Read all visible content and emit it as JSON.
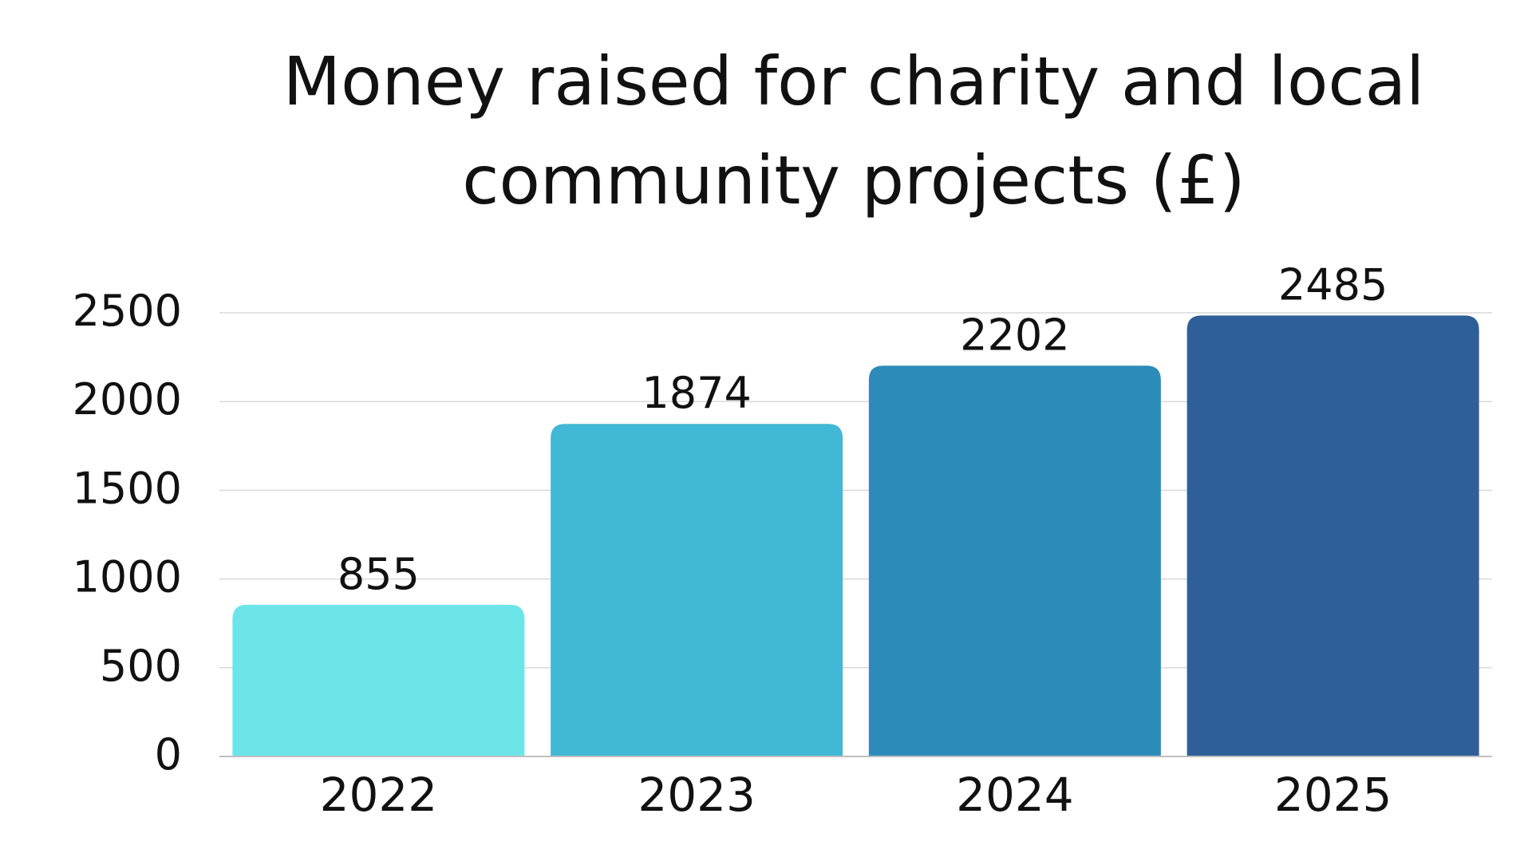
{
  "chart_data": {
    "type": "bar",
    "title": "Money raised for charity and local community projects (£)",
    "categories": [
      "2022",
      "2023",
      "2024",
      "2025"
    ],
    "values": [
      855,
      1874,
      2202,
      2485
    ],
    "bar_colors": [
      "#6ce5e8",
      "#41b8d5",
      "#2d8bba",
      "#2f5f98"
    ],
    "ylim": [
      0,
      2500
    ],
    "yticks": [
      0,
      500,
      1000,
      1500,
      2000,
      2500
    ],
    "grid": true,
    "legend": "none",
    "data_labels": true,
    "grid_color": "#d9d9d9",
    "axis_color": "#bfbfbf"
  }
}
